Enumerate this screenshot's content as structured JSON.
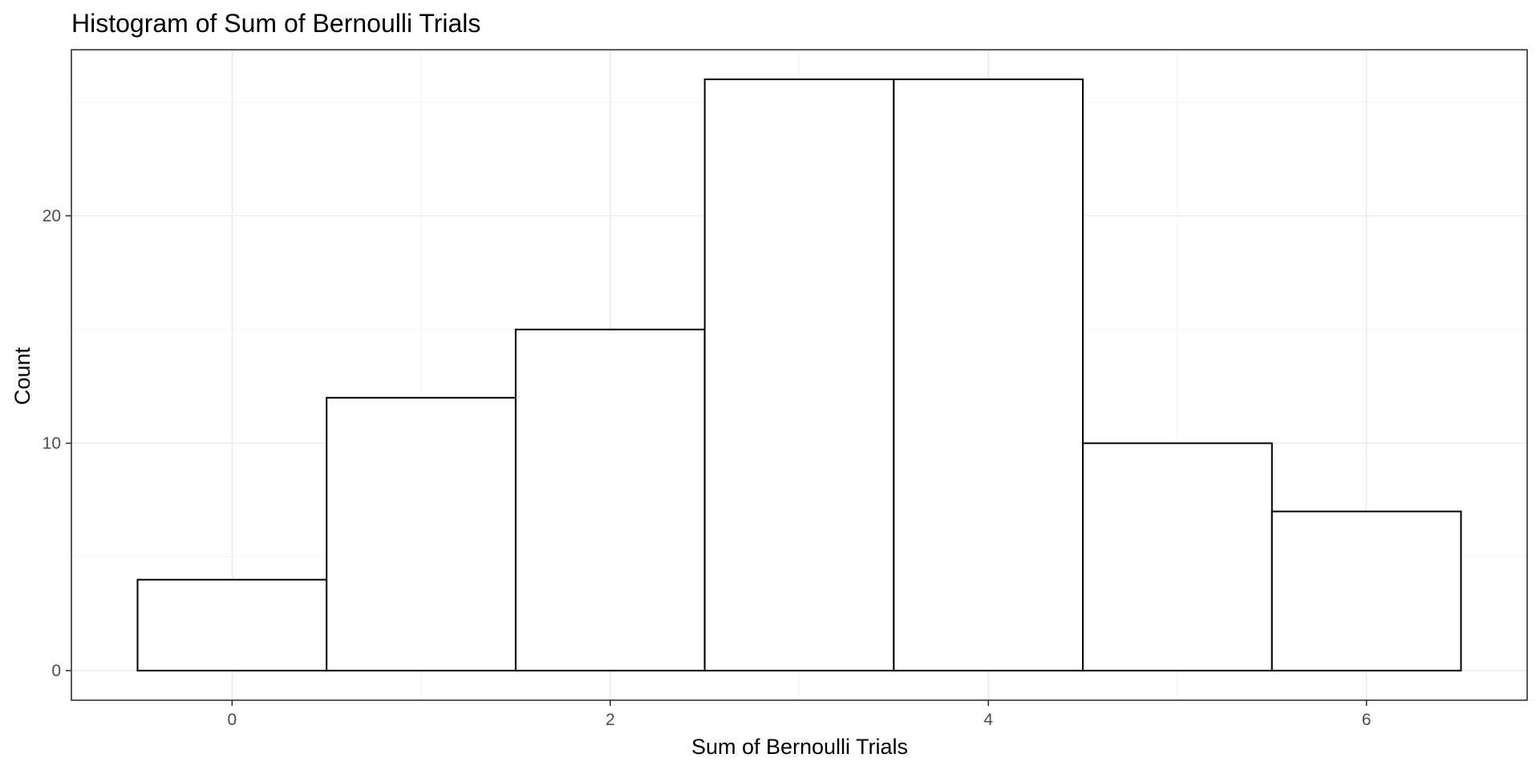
{
  "chart_data": {
    "type": "bar",
    "title": "Histogram of Sum of Bernoulli Trials",
    "xlabel": "Sum of Bernoulli Trials",
    "ylabel": "Count",
    "bin_width": 1,
    "bins": [
      {
        "x": 0,
        "count": 4
      },
      {
        "x": 1,
        "count": 12
      },
      {
        "x": 2,
        "count": 15
      },
      {
        "x": 3,
        "count": 26
      },
      {
        "x": 4,
        "count": 26
      },
      {
        "x": 5,
        "count": 10
      },
      {
        "x": 6,
        "count": 7
      }
    ],
    "xlim": [
      -0.85,
      6.85
    ],
    "ylim": [
      -1.3,
      27.3
    ],
    "x_ticks": [
      0,
      2,
      4,
      6
    ],
    "y_ticks": [
      0,
      10,
      20
    ],
    "x_tick_labels": [
      "0",
      "2",
      "4",
      "6"
    ],
    "y_tick_labels": [
      "0",
      "10",
      "20"
    ],
    "grid": true,
    "bar_fill": "#ffffff",
    "bar_outline": "#000000"
  }
}
